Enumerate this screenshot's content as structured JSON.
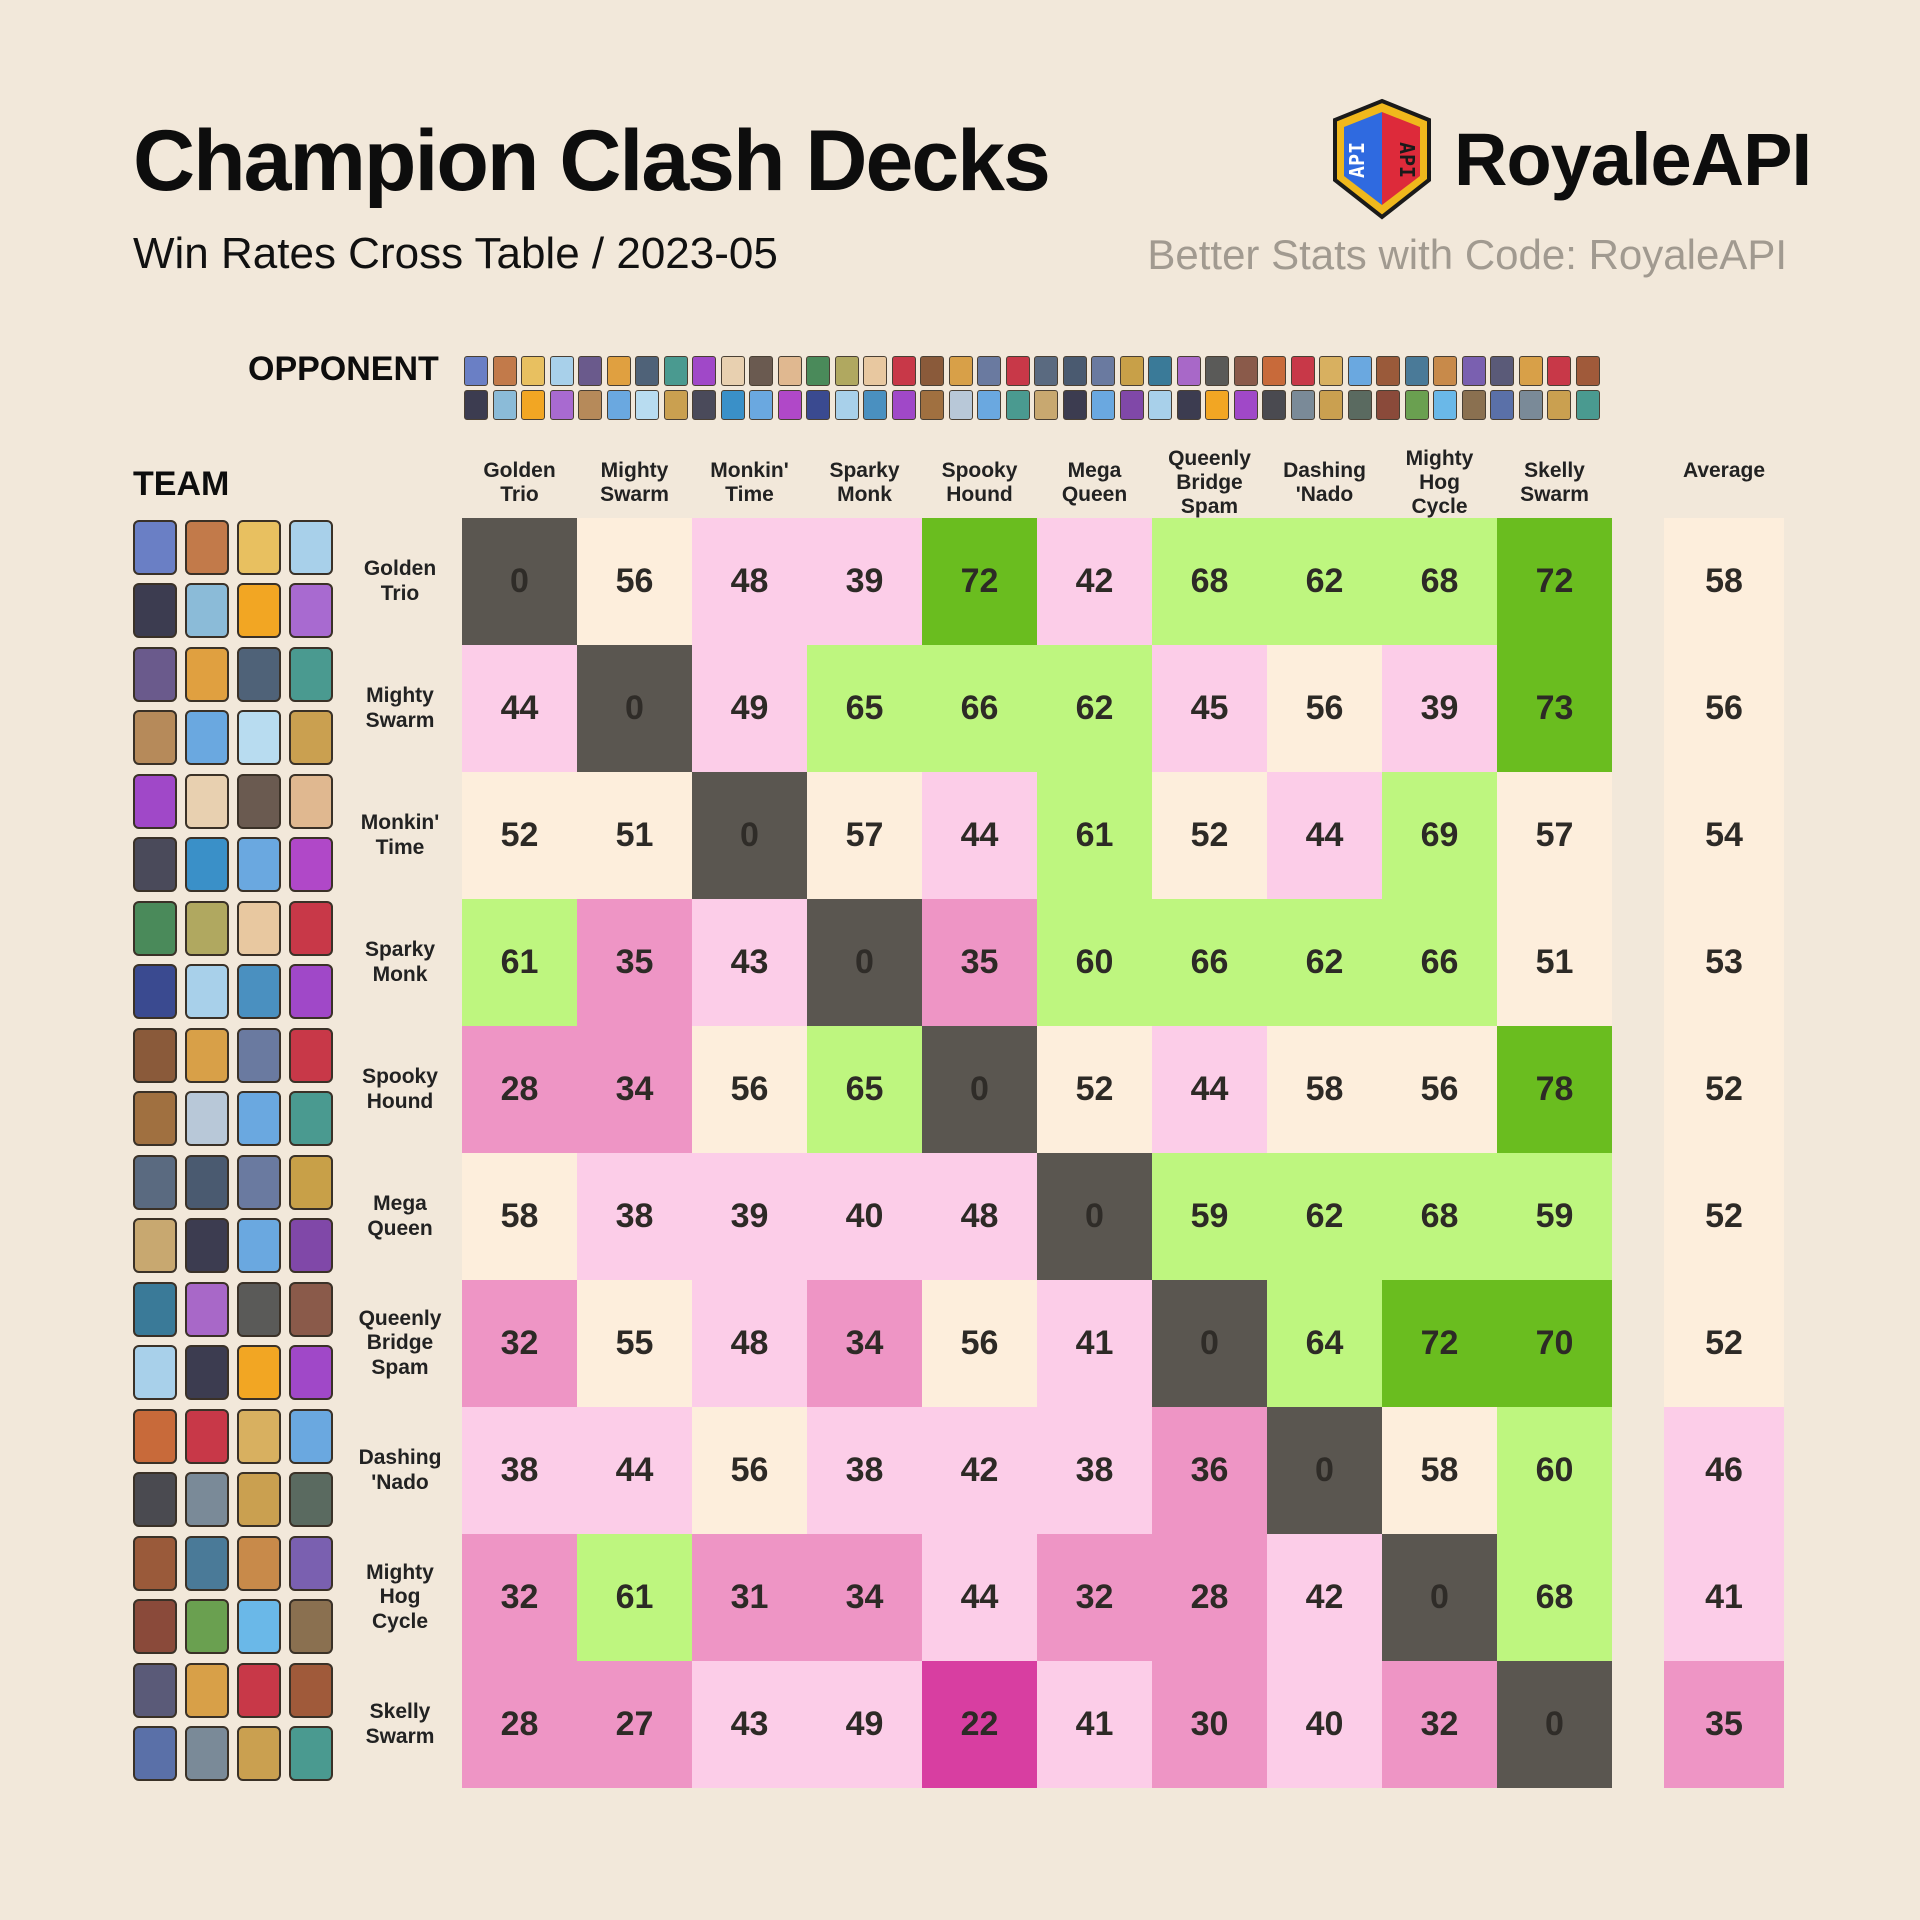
{
  "header": {
    "title": "Champion Clash Decks",
    "subtitle": "Win Rates Cross Table  / 2023-05",
    "brand": "RoyaleAPI",
    "tagline": "Better Stats with Code: RoyaleAPI",
    "opponent_label": "OPPONENT",
    "team_label": "TEAM",
    "average_label": "Average"
  },
  "colors": {
    "background": "#f2e8da",
    "diagonal": "#5a5650",
    "very_high": "#6abd1f",
    "high": "#bef67f",
    "mid": "#fdeedc",
    "low": "#fccde8",
    "lower": "#ee95c5",
    "lowest": "#d83ea1"
  },
  "card_colors": [
    [
      "#6a7fc5",
      "#c27a4a",
      "#e8c060",
      "#a8d0ea",
      "#3c3c50",
      "#8bbbd8",
      "#f2a623",
      "#a86ad0"
    ],
    [
      "#6a5a8c",
      "#e0a040",
      "#4f6278",
      "#4a9a90",
      "#b68a5a",
      "#6aa8e0",
      "#b8dcf0",
      "#caa050"
    ],
    [
      "#a048c8",
      "#e8d0b0",
      "#6a5a50",
      "#e0b890",
      "#4a4a5a",
      "#3a90c8",
      "#6aa8e0",
      "#b048c8"
    ],
    [
      "#4a8a5a",
      "#b0a860",
      "#e8c8a0",
      "#c83848",
      "#3a4a90",
      "#a8d0ea",
      "#4a90c0",
      "#a048c8"
    ],
    [
      "#8a5a3a",
      "#d8a048",
      "#6a7aa0",
      "#c83848",
      "#a07040",
      "#b8c8d8",
      "#6aa8e0",
      "#4a9a90"
    ],
    [
      "#5a6a80",
      "#4a5a70",
      "#6a7aa0",
      "#c8a048",
      "#c8a870",
      "#3c3c50",
      "#6aa8e0",
      "#8048a8"
    ],
    [
      "#3a7a98",
      "#a868c8",
      "#5a5a58",
      "#8a5a4a",
      "#a8d0ea",
      "#3c3c50",
      "#f2a623",
      "#a048c8"
    ],
    [
      "#c86a3a",
      "#c83848",
      "#d8b060",
      "#6aa8e0",
      "#4a4a50",
      "#7a8a98",
      "#caa050",
      "#5a6a60"
    ],
    [
      "#9a5a3a",
      "#4a7a98",
      "#c88a4a",
      "#7a60b0",
      "#8a4a3a",
      "#6aa050",
      "#6ab8e8",
      "#8a7050"
    ],
    [
      "#5a5a78",
      "#d8a048",
      "#c83848",
      "#a05a3a",
      "#5a70a8",
      "#7a8a98",
      "#caa050",
      "#4a9a90"
    ]
  ],
  "chart_data": {
    "type": "heatmap",
    "title": "Champion Clash Decks",
    "subtitle": "Win Rates Cross Table  / 2023-05",
    "x_axis_title": "OPPONENT",
    "y_axis_title": "TEAM",
    "columns": [
      [
        "Golden",
        "Trio"
      ],
      [
        "Mighty",
        "Swarm"
      ],
      [
        "Monkin'",
        "Time"
      ],
      [
        "Sparky",
        "Monk"
      ],
      [
        "Spooky",
        "Hound"
      ],
      [
        "Mega",
        "Queen"
      ],
      [
        "Queenly",
        "Bridge",
        "Spam"
      ],
      [
        "Dashing",
        "'Nado"
      ],
      [
        "Mighty",
        "Hog",
        "Cycle"
      ],
      [
        "Skelly",
        "Swarm"
      ]
    ],
    "rows": [
      [
        "Golden",
        "Trio"
      ],
      [
        "Mighty",
        "Swarm"
      ],
      [
        "Monkin'",
        "Time"
      ],
      [
        "Sparky",
        "Monk"
      ],
      [
        "Spooky",
        "Hound"
      ],
      [
        "Mega",
        "Queen"
      ],
      [
        "Queenly",
        "Bridge",
        "Spam"
      ],
      [
        "Dashing",
        "'Nado"
      ],
      [
        "Mighty",
        "Hog",
        "Cycle"
      ],
      [
        "Skelly",
        "Swarm"
      ]
    ],
    "values": [
      [
        0,
        56,
        48,
        39,
        72,
        42,
        68,
        62,
        68,
        72
      ],
      [
        44,
        0,
        49,
        65,
        66,
        62,
        45,
        56,
        39,
        73
      ],
      [
        52,
        51,
        0,
        57,
        44,
        61,
        52,
        44,
        69,
        57
      ],
      [
        61,
        35,
        43,
        0,
        35,
        60,
        66,
        62,
        66,
        51
      ],
      [
        28,
        34,
        56,
        65,
        0,
        52,
        44,
        58,
        56,
        78
      ],
      [
        58,
        38,
        39,
        40,
        48,
        0,
        59,
        62,
        68,
        59
      ],
      [
        32,
        55,
        48,
        34,
        56,
        41,
        0,
        64,
        72,
        70
      ],
      [
        38,
        44,
        56,
        38,
        42,
        38,
        36,
        0,
        58,
        60
      ],
      [
        32,
        61,
        31,
        34,
        44,
        32,
        28,
        42,
        0,
        68
      ],
      [
        28,
        27,
        43,
        49,
        22,
        41,
        30,
        40,
        32,
        0
      ]
    ],
    "averages": [
      58,
      56,
      54,
      53,
      52,
      52,
      52,
      46,
      41,
      35
    ],
    "average_label": "Average"
  }
}
